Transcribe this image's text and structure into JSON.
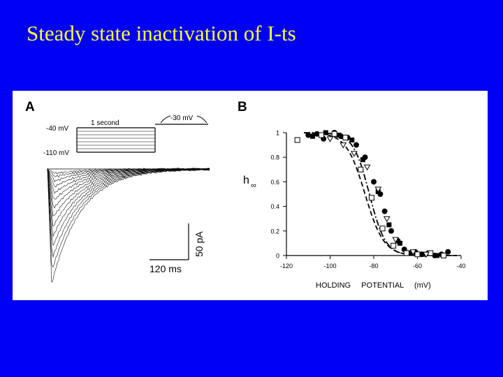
{
  "slide": {
    "title": "Steady state inactivation of I-ts"
  },
  "panel_a": {
    "label": "A",
    "protocol": {
      "v_prepulse_1": "-40 mV",
      "v_prepulse_2": "-110 mV",
      "duration": "1 second",
      "v_test": "-30 mV"
    },
    "scale_bar": {
      "time": "120 ms",
      "current": "50 pA"
    }
  },
  "panel_b": {
    "label": "B"
  },
  "chart_data": {
    "type": "scatter",
    "title": "",
    "xlabel": "HOLDING POTENTIAL (mV)",
    "ylabel": "h∞",
    "ylabel_main": "h",
    "ylabel_sub": "∞",
    "xlim": [
      -120,
      -40
    ],
    "ylim": [
      0,
      1
    ],
    "x_ticks": [
      -120,
      -100,
      -80,
      -60,
      -40
    ],
    "y_ticks": [
      0,
      0.2,
      0.4,
      0.6,
      0.8,
      1
    ],
    "grid": false,
    "fits": [
      {
        "style": "dashed",
        "v_half": -84,
        "slope": 4.3
      },
      {
        "style": "dash-dot",
        "v_half": -82,
        "slope": 3.7
      }
    ],
    "series": [
      {
        "marker": "filled-circle",
        "x": [
          -110,
          -106,
          -103,
          -98,
          -95,
          -92,
          -88,
          -84,
          -80,
          -77,
          -75,
          -72,
          -69,
          -66,
          -64,
          -61,
          -58,
          -55,
          -52,
          -49,
          -46
        ],
        "y": [
          0.98,
          0.99,
          0.95,
          1.0,
          0.97,
          0.96,
          0.9,
          0.8,
          0.6,
          0.5,
          0.36,
          0.2,
          0.12,
          0.05,
          0.02,
          0.03,
          0.01,
          0.02,
          0.0,
          0.01,
          0.03
        ]
      },
      {
        "marker": "filled-square",
        "x": [
          -108,
          -102,
          -96,
          -90,
          -85,
          -78,
          -73,
          -68,
          -63,
          -57,
          -51
        ],
        "y": [
          0.97,
          1.0,
          0.98,
          0.94,
          0.78,
          0.52,
          0.25,
          0.1,
          0.02,
          0.01,
          0.0
        ]
      },
      {
        "marker": "open-square",
        "x": [
          -115,
          -104,
          -98,
          -93,
          -86,
          -81,
          -76,
          -71,
          -65,
          -60,
          -54,
          -48
        ],
        "y": [
          0.94,
          0.98,
          0.99,
          0.96,
          0.7,
          0.47,
          0.22,
          0.08,
          0.02,
          0.01,
          0.02,
          0.0
        ]
      },
      {
        "marker": "open-triangle",
        "x": [
          -100,
          -94,
          -89,
          -83,
          -78,
          -74,
          -70,
          -62,
          -56
        ],
        "y": [
          0.95,
          0.9,
          0.83,
          0.72,
          0.54,
          0.3,
          0.13,
          0.03,
          0.01
        ]
      }
    ]
  }
}
